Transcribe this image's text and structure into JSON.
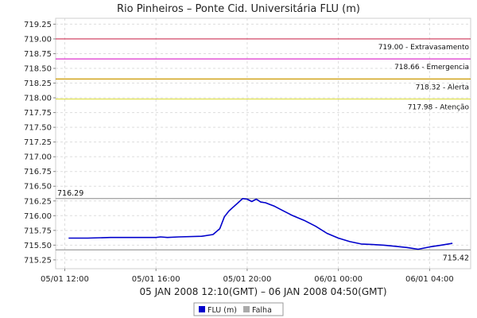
{
  "chart_data": {
    "type": "line",
    "title": "Rio Pinheiros – Ponte Cid. Universitária FLU (m)",
    "xlabel": "05 JAN 2008 12:10(GMT) – 06 JAN 2008 04:50(GMT)",
    "ylabel": "",
    "ylim": [
      715.1,
      719.35
    ],
    "xlim": [
      -0.4,
      17.8
    ],
    "grid": true,
    "y_ticks": [
      "715.25",
      "715.50",
      "715.75",
      "716.00",
      "716.25",
      "716.50",
      "716.75",
      "717.00",
      "717.25",
      "717.50",
      "717.75",
      "718.00",
      "718.25",
      "718.50",
      "718.75",
      "719.00",
      "719.25"
    ],
    "x_ticks": [
      {
        "label": "05/01 12:00",
        "hours": 0
      },
      {
        "label": "05/01 16:00",
        "hours": 4
      },
      {
        "label": "05/01 20:00",
        "hours": 8
      },
      {
        "label": "06/01 00:00",
        "hours": 12
      },
      {
        "label": "06/01 04:00",
        "hours": 16
      }
    ],
    "thresholds": [
      {
        "value": 719.0,
        "label": "719.00 - Extravasamento",
        "color": "#cc3355"
      },
      {
        "value": 718.66,
        "label": "718.66 - Emergencia",
        "color": "#dd33cc"
      },
      {
        "value": 718.32,
        "label": "718.32 - Alerta",
        "color": "#cc9900"
      },
      {
        "value": 717.98,
        "label": "717.98 - Atenção",
        "color": "#dddd44"
      }
    ],
    "markers": [
      {
        "value": 716.29,
        "label": "716.29",
        "position": "top-left",
        "color": "#888888"
      },
      {
        "value": 715.42,
        "label": "715.42",
        "position": "bottom-right",
        "color": "#888888"
      }
    ],
    "series": [
      {
        "name": "FLU (m)",
        "color": "#0000cc",
        "x": [
          0.17,
          1.0,
          2.0,
          3.0,
          4.0,
          4.2,
          4.5,
          5.0,
          6.0,
          6.5,
          6.8,
          7.0,
          7.2,
          7.4,
          7.6,
          7.8,
          8.0,
          8.2,
          8.4,
          8.6,
          8.8,
          9.0,
          9.2,
          9.5,
          10.0,
          10.5,
          11.0,
          11.5,
          12.0,
          12.5,
          13.0,
          13.5,
          14.0,
          14.5,
          15.0,
          15.5,
          16.0,
          16.5,
          17.0
        ],
        "values": [
          715.62,
          715.62,
          715.63,
          715.63,
          715.63,
          715.64,
          715.63,
          715.64,
          715.65,
          715.68,
          715.78,
          715.98,
          716.08,
          716.15,
          716.22,
          716.29,
          716.28,
          716.24,
          716.28,
          716.23,
          716.22,
          716.19,
          716.16,
          716.1,
          716.0,
          715.92,
          715.82,
          715.7,
          715.62,
          715.56,
          715.52,
          715.51,
          715.5,
          715.48,
          715.46,
          715.43,
          715.47,
          715.5,
          715.53
        ]
      }
    ],
    "legend": {
      "placement": "bottom-center",
      "entries": [
        {
          "name": "FLU (m)",
          "color": "#0000cc"
        },
        {
          "name": "Falha",
          "color": "#aaaaaa"
        }
      ]
    }
  }
}
